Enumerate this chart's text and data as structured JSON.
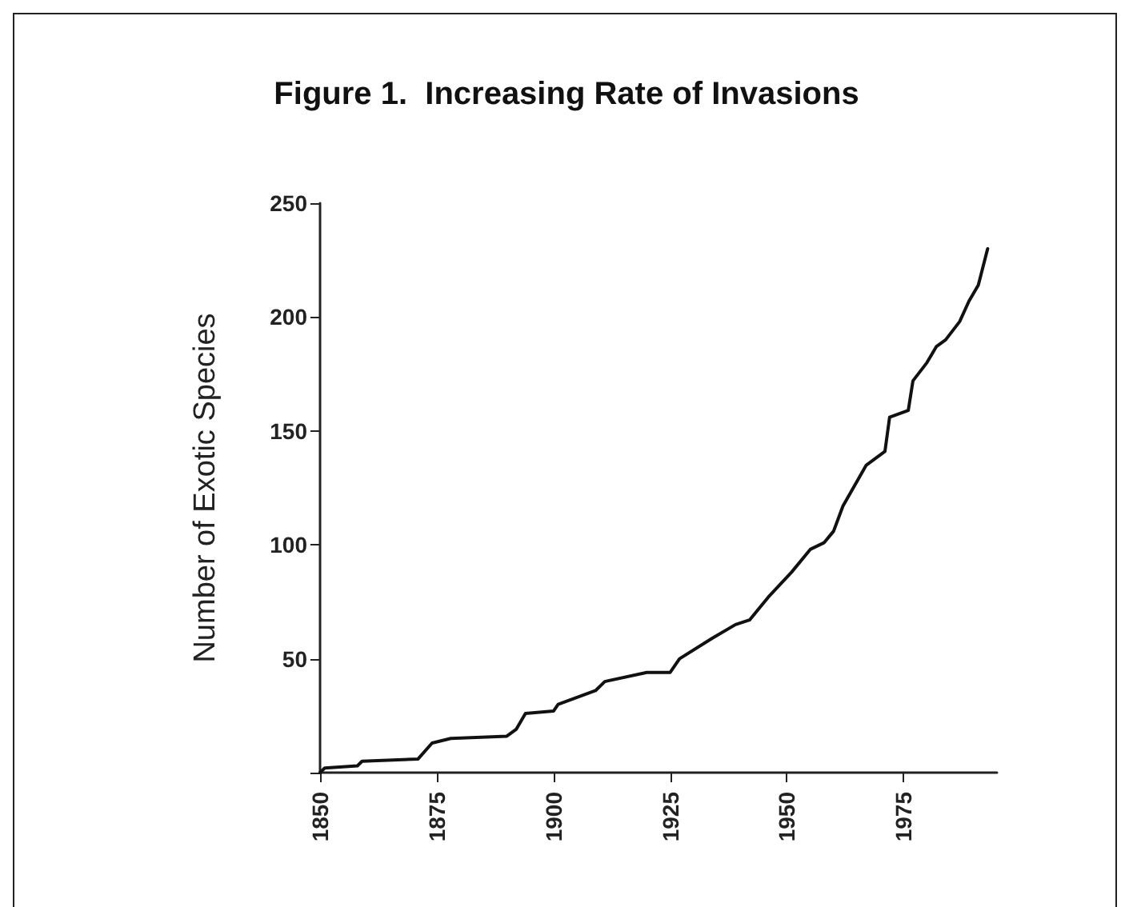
{
  "chart_data": {
    "type": "line",
    "title": "Figure 1.  Increasing Rate of Invasions",
    "ylabel": "Number of Exotic Species",
    "x": [
      1850,
      1851,
      1858,
      1859,
      1871,
      1874,
      1878,
      1890,
      1892,
      1894,
      1900,
      1901,
      1909,
      1911,
      1920,
      1925,
      1927,
      1934,
      1939,
      1942,
      1946,
      1951,
      1955,
      1958,
      1960,
      1962,
      1967,
      1971,
      1972,
      1976,
      1977,
      1980,
      1982,
      1984,
      1987,
      1989,
      1991,
      1993
    ],
    "series": [
      {
        "color": "#111111",
        "values": [
          0,
          2,
          3,
          5,
          6,
          13,
          15,
          16,
          19,
          26,
          27,
          30,
          36,
          40,
          44,
          44,
          50,
          59,
          65,
          67,
          77,
          88,
          98,
          101,
          106,
          117,
          135,
          141,
          156,
          159,
          172,
          180,
          187,
          190,
          198,
          207,
          214,
          230
        ]
      }
    ],
    "xlim": [
      1850,
      1995
    ],
    "xticks": [
      1850,
      1875,
      1900,
      1925,
      1950,
      1975
    ],
    "ylim": [
      0,
      250
    ],
    "yticks": [
      {
        "value": 0,
        "label": null
      },
      50,
      100,
      150,
      200,
      250
    ],
    "grid": false,
    "marker": "none",
    "line_style": "solid"
  }
}
